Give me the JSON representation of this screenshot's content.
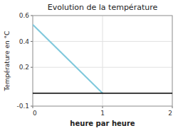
{
  "chart_data": {
    "type": "line",
    "title": "Evolution de la température",
    "x_label": "heure par heure",
    "y_label": "Température en °C",
    "x": [
      0,
      1
    ],
    "values": [
      0.53,
      0
    ],
    "color": "#7fc8dc",
    "baseline": 0,
    "xlim": [
      0,
      2
    ],
    "xticks": [
      0,
      1,
      2
    ],
    "ylim": [
      -0.1,
      0.6
    ],
    "yticks": [
      -0.1,
      0.2,
      0.4,
      0.6
    ],
    "grid": true
  }
}
